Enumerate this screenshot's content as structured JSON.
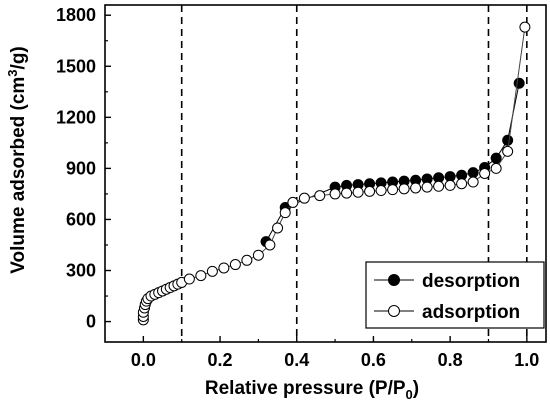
{
  "chart_data": {
    "type": "scatter",
    "xlabel_main": "Relative pressure (P/P",
    "xlabel_sub": "0",
    "xlabel_end": ")",
    "ylabel_main": "Volume adsorbed (cm",
    "ylabel_sup": "3",
    "ylabel_end": "/g)",
    "xlim": [
      -0.1,
      1.05
    ],
    "ylim": [
      -120,
      1860
    ],
    "x_ticks": [
      0.0,
      0.2,
      0.4,
      0.6,
      0.8,
      1.0
    ],
    "x_tick_labels": [
      "0.0",
      "0.2",
      "0.4",
      "0.6",
      "0.8",
      "1.0"
    ],
    "y_ticks": [
      0,
      300,
      600,
      900,
      1200,
      1500,
      1800
    ],
    "y_tick_labels": [
      "0",
      "300",
      "600",
      "900",
      "1200",
      "1500",
      "1800"
    ],
    "reference_lines_x": [
      0.1,
      0.4,
      0.9,
      1.0
    ],
    "legend_position": "lower-right",
    "series": [
      {
        "name": "desorption",
        "marker": "filled-circle",
        "x": [
          0.32,
          0.37,
          0.5,
          0.53,
          0.56,
          0.59,
          0.62,
          0.65,
          0.68,
          0.71,
          0.74,
          0.77,
          0.8,
          0.83,
          0.86,
          0.89,
          0.92,
          0.95,
          0.98
        ],
        "y": [
          470,
          670,
          790,
          800,
          805,
          810,
          815,
          820,
          825,
          830,
          838,
          845,
          852,
          860,
          875,
          905,
          960,
          1065,
          1400
        ]
      },
      {
        "name": "adsorption",
        "marker": "open-circle",
        "x": [
          0.0,
          0.0,
          0.0,
          0.003,
          0.005,
          0.008,
          0.012,
          0.02,
          0.03,
          0.04,
          0.05,
          0.06,
          0.07,
          0.08,
          0.09,
          0.1,
          0.12,
          0.15,
          0.18,
          0.21,
          0.24,
          0.27,
          0.3,
          0.33,
          0.35,
          0.37,
          0.39,
          0.42,
          0.46,
          0.5,
          0.53,
          0.56,
          0.59,
          0.62,
          0.65,
          0.68,
          0.71,
          0.74,
          0.77,
          0.8,
          0.83,
          0.86,
          0.89,
          0.92,
          0.95,
          0.995
        ],
        "y": [
          10,
          30,
          55,
          80,
          100,
          120,
          135,
          150,
          160,
          170,
          180,
          190,
          200,
          210,
          220,
          230,
          250,
          270,
          295,
          315,
          335,
          360,
          390,
          450,
          550,
          640,
          700,
          725,
          740,
          750,
          755,
          760,
          765,
          770,
          775,
          780,
          785,
          790,
          795,
          800,
          810,
          820,
          870,
          900,
          1000,
          1730
        ]
      }
    ]
  }
}
